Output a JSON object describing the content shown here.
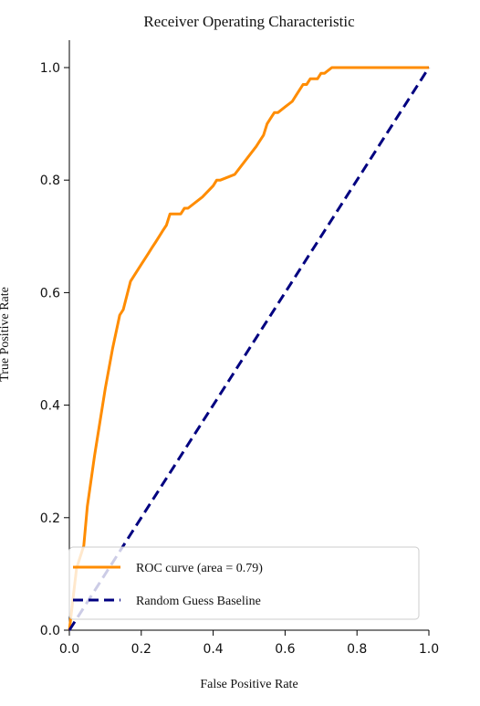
{
  "chart_data": {
    "type": "line",
    "title": "Receiver Operating Characteristic",
    "xlabel": "False Positive Rate",
    "ylabel": "True Positive Rate",
    "xlim": [
      0.0,
      1.0
    ],
    "ylim": [
      0.0,
      1.0
    ],
    "xticks": [
      "0.0",
      "0.2",
      "0.4",
      "0.6",
      "0.8",
      "1.0"
    ],
    "yticks": [
      "0.0",
      "0.2",
      "0.4",
      "0.6",
      "0.8",
      "1.0"
    ],
    "grid": false,
    "legend_position": "lower-right",
    "series": [
      {
        "name": "ROC curve (area = 0.79)",
        "color": "#ff8c00",
        "style": "solid",
        "x": [
          0.0,
          0.02,
          0.04,
          0.05,
          0.07,
          0.1,
          0.12,
          0.14,
          0.15,
          0.17,
          0.18,
          0.2,
          0.22,
          0.23,
          0.24,
          0.25,
          0.26,
          0.27,
          0.28,
          0.31,
          0.32,
          0.33,
          0.37,
          0.4,
          0.41,
          0.42,
          0.46,
          0.52,
          0.53,
          0.54,
          0.55,
          0.56,
          0.57,
          0.58,
          0.6,
          0.62,
          0.63,
          0.64,
          0.65,
          0.66,
          0.67,
          0.69,
          0.7,
          0.71,
          0.73,
          1.0
        ],
        "y": [
          0.0,
          0.11,
          0.15,
          0.22,
          0.31,
          0.43,
          0.5,
          0.56,
          0.57,
          0.62,
          0.63,
          0.65,
          0.67,
          0.68,
          0.69,
          0.7,
          0.71,
          0.72,
          0.74,
          0.74,
          0.75,
          0.75,
          0.77,
          0.79,
          0.8,
          0.8,
          0.81,
          0.86,
          0.87,
          0.88,
          0.9,
          0.91,
          0.92,
          0.92,
          0.93,
          0.94,
          0.95,
          0.96,
          0.97,
          0.97,
          0.98,
          0.98,
          0.99,
          0.99,
          1.0,
          1.0
        ]
      },
      {
        "name": "Random Guess Baseline",
        "color": "#000080",
        "style": "dashed",
        "x": [
          0.0,
          1.0
        ],
        "y": [
          0.0,
          1.0
        ]
      }
    ]
  }
}
